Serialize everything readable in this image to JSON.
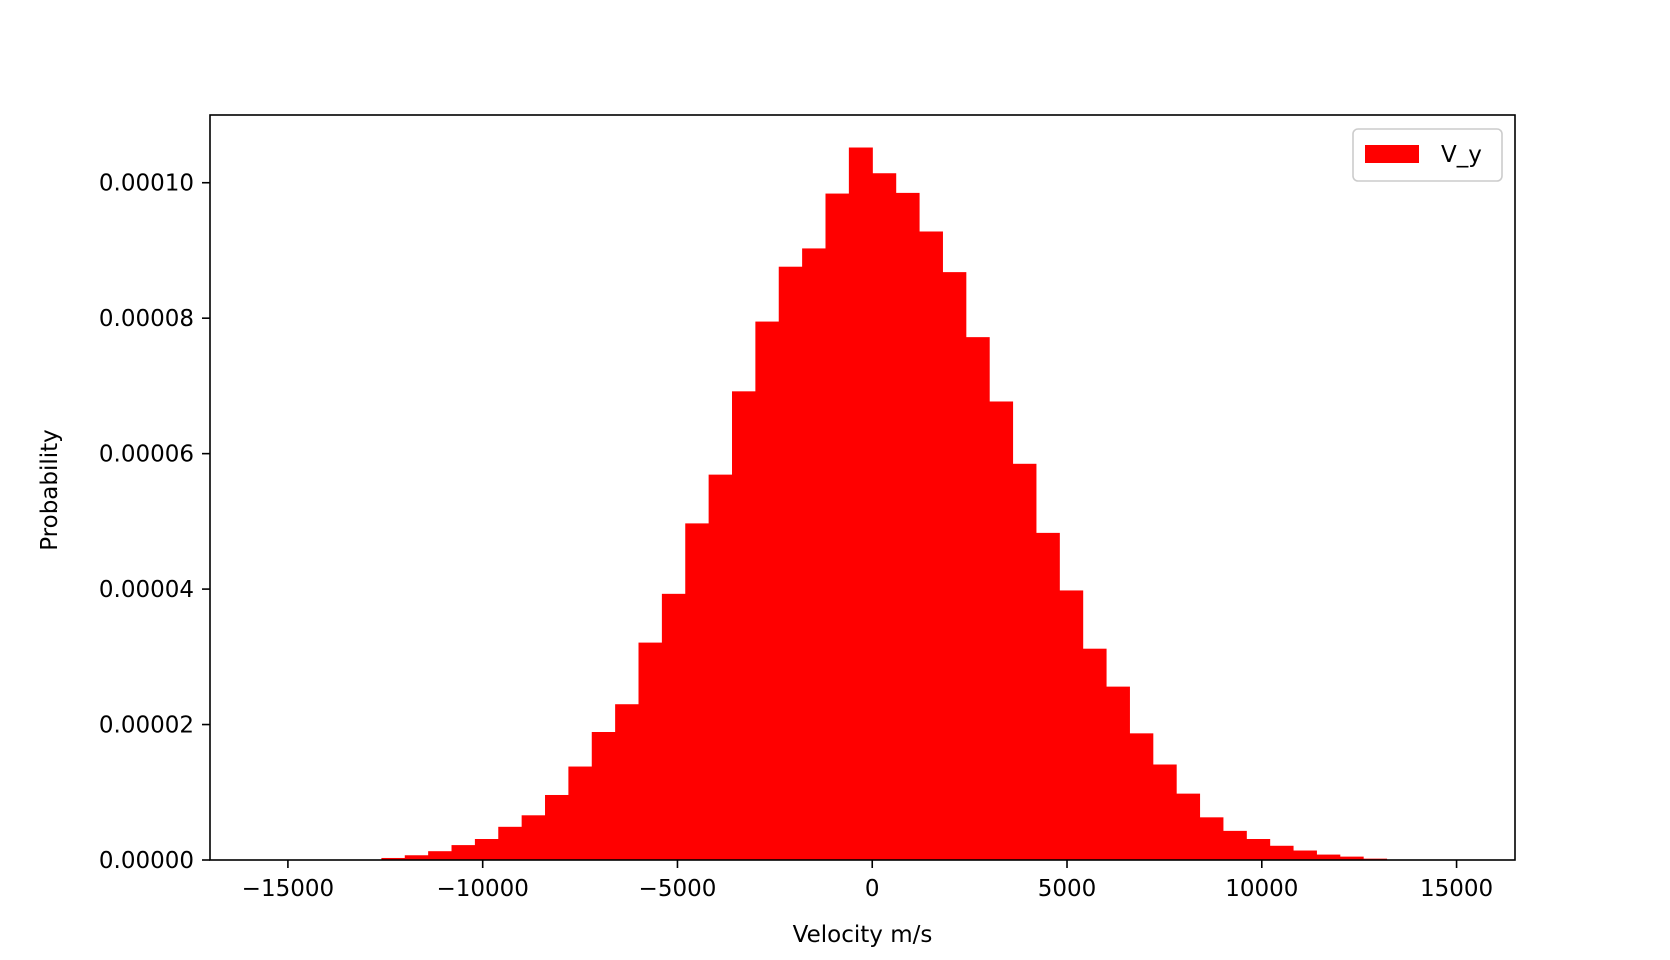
{
  "chart_data": {
    "type": "bar",
    "title": "",
    "xlabel": "Velocity m/s",
    "ylabel": "Probability",
    "xlim": [
      -17000,
      16500
    ],
    "ylim": [
      0,
      0.00011
    ],
    "xticks": [
      -15000,
      -10000,
      -5000,
      0,
      5000,
      10000,
      15000
    ],
    "xtick_labels": [
      "−15000",
      "−10000",
      "−5000",
      "0",
      "5000",
      "10000",
      "15000"
    ],
    "yticks": [
      0,
      2e-05,
      4e-05,
      6e-05,
      8e-05,
      0.0001
    ],
    "ytick_labels": [
      "0.00000",
      "0.00002",
      "0.00004",
      "0.00006",
      "0.00008",
      "0.00010"
    ],
    "grid": false,
    "legend_position": "top-right",
    "series": [
      {
        "name": "V_y",
        "color": "#ff0000",
        "bin_start": -15000,
        "bin_width": 600,
        "values": [
          0,
          0,
          0,
          0,
          3e-07,
          7e-07,
          1.3e-06,
          2.2e-06,
          3.1e-06,
          4.9e-06,
          6.6e-06,
          9.6e-06,
          1.38e-05,
          1.89e-05,
          2.3e-05,
          3.21e-05,
          3.93e-05,
          4.97e-05,
          5.69e-05,
          6.92e-05,
          7.95e-05,
          8.76e-05,
          9.03e-05,
          9.84e-05,
          0.0001052,
          0.0001014,
          9.85e-05,
          9.28e-05,
          8.68e-05,
          7.72e-05,
          6.77e-05,
          5.85e-05,
          4.83e-05,
          3.98e-05,
          3.12e-05,
          2.56e-05,
          1.87e-05,
          1.41e-05,
          9.8e-06,
          6.3e-06,
          4.3e-06,
          3.1e-06,
          2.1e-06,
          1.4e-06,
          8e-07,
          5e-07,
          2e-07,
          0,
          0,
          0
        ]
      }
    ]
  }
}
